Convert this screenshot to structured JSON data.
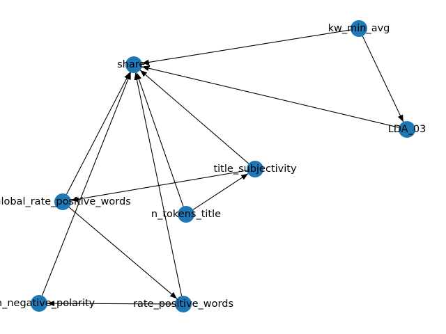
{
  "colors": {
    "node": "#1f77b4",
    "edge": "#000000",
    "background": "#ffffff"
  },
  "graph": {
    "nodes": [
      {
        "id": "shares",
        "label": "shares"
      },
      {
        "id": "kw_min_avg",
        "label": "kw_min_avg"
      },
      {
        "id": "LDA_03",
        "label": "LDA_03"
      },
      {
        "id": "title_subjectivity",
        "label": "title_subjectivity"
      },
      {
        "id": "global_rate_positive_words",
        "label": "global_rate_positive_words"
      },
      {
        "id": "n_tokens_title",
        "label": "n_tokens_title"
      },
      {
        "id": "min_negative_polarity",
        "label": "min_negative_polarity"
      },
      {
        "id": "rate_positive_words",
        "label": "rate_positive_words"
      }
    ],
    "edges": [
      {
        "from": "kw_min_avg",
        "to": "shares"
      },
      {
        "from": "kw_min_avg",
        "to": "LDA_03"
      },
      {
        "from": "LDA_03",
        "to": "shares"
      },
      {
        "from": "title_subjectivity",
        "to": "shares"
      },
      {
        "from": "title_subjectivity",
        "to": "global_rate_positive_words"
      },
      {
        "from": "n_tokens_title",
        "to": "shares"
      },
      {
        "from": "n_tokens_title",
        "to": "title_subjectivity"
      },
      {
        "from": "global_rate_positive_words",
        "to": "shares"
      },
      {
        "from": "global_rate_positive_words",
        "to": "rate_positive_words"
      },
      {
        "from": "min_negative_polarity",
        "to": "shares"
      },
      {
        "from": "rate_positive_words",
        "to": "shares"
      },
      {
        "from": "rate_positive_words",
        "to": "min_negative_polarity"
      }
    ]
  }
}
